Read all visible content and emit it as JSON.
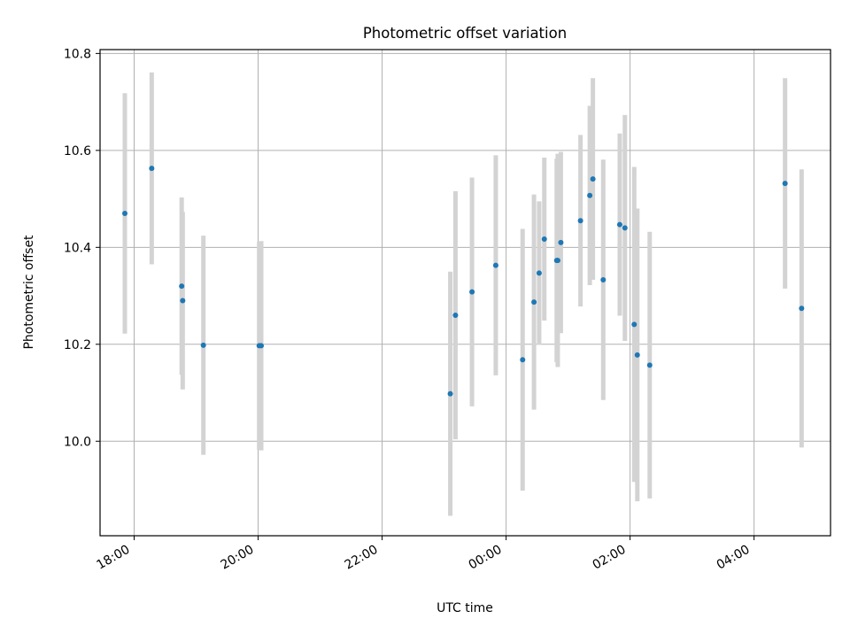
{
  "chart_data": {
    "type": "scatter",
    "title": "Photometric offset variation",
    "xlabel": "UTC time",
    "ylabel": "Photometric offset",
    "x_axis_type": "time",
    "xlim": [
      "17:27",
      "05:14"
    ],
    "ylim": [
      9.805,
      10.808
    ],
    "xticks": [
      "18:00",
      "20:00",
      "22:00",
      "00:00",
      "02:00",
      "04:00"
    ],
    "yticks": [
      10.0,
      10.2,
      10.4,
      10.6,
      10.8
    ],
    "ytick_labels": [
      "10.0",
      "10.2",
      "10.4",
      "10.6",
      "10.8"
    ],
    "grid": true,
    "legend": "none",
    "colors": {
      "point": "#1f77b4",
      "errorbar": "#d3d3d3",
      "grid": "#b0b0b0"
    },
    "points": [
      {
        "x": "17:51",
        "y": 10.47,
        "err": 0.248
      },
      {
        "x": "18:17",
        "y": 10.563,
        "err": 0.198
      },
      {
        "x": "18:46",
        "y": 10.32,
        "err": 0.183
      },
      {
        "x": "18:47",
        "y": 10.29,
        "err": 0.183
      },
      {
        "x": "19:07",
        "y": 10.198,
        "err": 0.226
      },
      {
        "x": "20:01",
        "y": 10.197,
        "err": 0.215
      },
      {
        "x": "20:03",
        "y": 10.197,
        "err": 0.216
      },
      {
        "x": "23:06",
        "y": 10.098,
        "err": 0.252
      },
      {
        "x": "23:11",
        "y": 10.26,
        "err": 0.256
      },
      {
        "x": "23:27",
        "y": 10.308,
        "err": 0.236
      },
      {
        "x": "23:50",
        "y": 10.363,
        "err": 0.227
      },
      {
        "x": "00:16",
        "y": 10.168,
        "err": 0.27
      },
      {
        "x": "00:27",
        "y": 10.287,
        "err": 0.222
      },
      {
        "x": "00:32",
        "y": 10.347,
        "err": 0.148
      },
      {
        "x": "00:37",
        "y": 10.417,
        "err": 0.168
      },
      {
        "x": "00:49",
        "y": 10.373,
        "err": 0.21
      },
      {
        "x": "00:50",
        "y": 10.373,
        "err": 0.22
      },
      {
        "x": "00:53",
        "y": 10.41,
        "err": 0.187
      },
      {
        "x": "01:12",
        "y": 10.455,
        "err": 0.177
      },
      {
        "x": "01:21",
        "y": 10.507,
        "err": 0.185
      },
      {
        "x": "01:24",
        "y": 10.541,
        "err": 0.208
      },
      {
        "x": "01:34",
        "y": 10.333,
        "err": 0.248
      },
      {
        "x": "01:50",
        "y": 10.447,
        "err": 0.188
      },
      {
        "x": "01:55",
        "y": 10.44,
        "err": 0.233
      },
      {
        "x": "02:04",
        "y": 10.241,
        "err": 0.325
      },
      {
        "x": "02:07",
        "y": 10.178,
        "err": 0.302
      },
      {
        "x": "02:19",
        "y": 10.157,
        "err": 0.275
      },
      {
        "x": "04:30",
        "y": 10.532,
        "err": 0.217
      },
      {
        "x": "04:46",
        "y": 10.274,
        "err": 0.287
      }
    ]
  }
}
